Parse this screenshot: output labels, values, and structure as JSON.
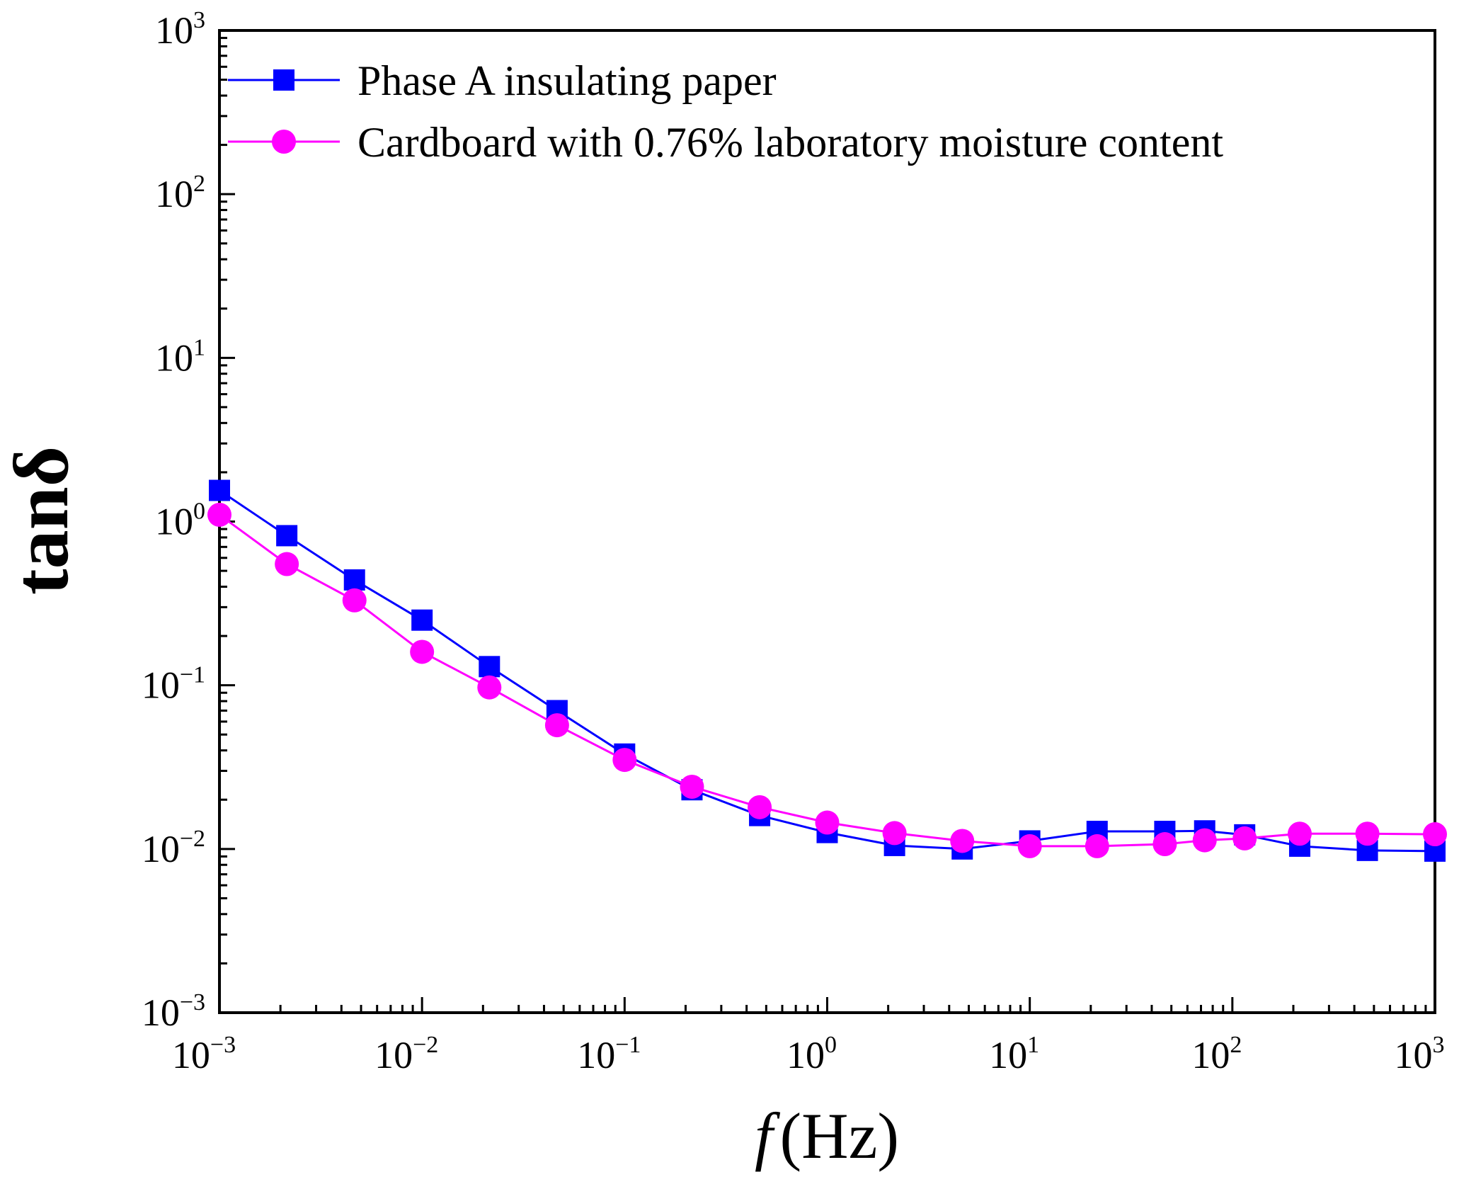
{
  "chart_data": {
    "type": "line",
    "title": "",
    "xlabel": {
      "symbol": "f",
      "unit": "(Hz)"
    },
    "ylabel": "tanδ",
    "xscale": "log",
    "yscale": "log",
    "xlim": [
      0.001,
      1000
    ],
    "ylim": [
      0.001,
      1000
    ],
    "grid": false,
    "legend_position": "top-left",
    "x_ticks": [
      {
        "value": 0.001,
        "base": "10",
        "exp": "−3"
      },
      {
        "value": 0.01,
        "base": "10",
        "exp": "−2"
      },
      {
        "value": 0.1,
        "base": "10",
        "exp": "−1"
      },
      {
        "value": 1,
        "base": "10",
        "exp": "0"
      },
      {
        "value": 10,
        "base": "10",
        "exp": "1"
      },
      {
        "value": 100,
        "base": "10",
        "exp": "2"
      },
      {
        "value": 1000,
        "base": "10",
        "exp": "3"
      }
    ],
    "y_ticks": [
      {
        "value": 0.001,
        "base": "10",
        "exp": "−3"
      },
      {
        "value": 0.01,
        "base": "10",
        "exp": "−2"
      },
      {
        "value": 0.1,
        "base": "10",
        "exp": "−1"
      },
      {
        "value": 1,
        "base": "10",
        "exp": "0"
      },
      {
        "value": 10,
        "base": "10",
        "exp": "1"
      },
      {
        "value": 100,
        "base": "10",
        "exp": "2"
      },
      {
        "value": 1000,
        "base": "10",
        "exp": "3"
      }
    ],
    "series": [
      {
        "name": "Phase A insulating paper",
        "color": "#0000ff",
        "marker": "square",
        "x": [
          0.001,
          0.00215,
          0.00464,
          0.01,
          0.0215,
          0.0464,
          0.1,
          0.215,
          0.464,
          1,
          2.15,
          4.64,
          10,
          21.5,
          46.4,
          73,
          115,
          215,
          464,
          1000
        ],
        "y": [
          1.55,
          0.82,
          0.44,
          0.25,
          0.13,
          0.07,
          0.038,
          0.023,
          0.016,
          0.0126,
          0.0105,
          0.01,
          0.0112,
          0.0128,
          0.0128,
          0.0129,
          0.0122,
          0.0104,
          0.0098,
          0.0097
        ]
      },
      {
        "name": "Cardboard with 0.76% laboratory moisture content",
        "color": "#ff00ff",
        "marker": "circle",
        "x": [
          0.001,
          0.00215,
          0.00464,
          0.01,
          0.0215,
          0.0464,
          0.1,
          0.215,
          0.464,
          1,
          2.15,
          4.64,
          10,
          21.5,
          46.4,
          73,
          115,
          215,
          464,
          1000
        ],
        "y": [
          1.1,
          0.55,
          0.33,
          0.16,
          0.097,
          0.057,
          0.035,
          0.024,
          0.018,
          0.0145,
          0.0125,
          0.0112,
          0.0104,
          0.0104,
          0.0107,
          0.0113,
          0.0116,
          0.0124,
          0.0124,
          0.0123
        ]
      }
    ]
  }
}
